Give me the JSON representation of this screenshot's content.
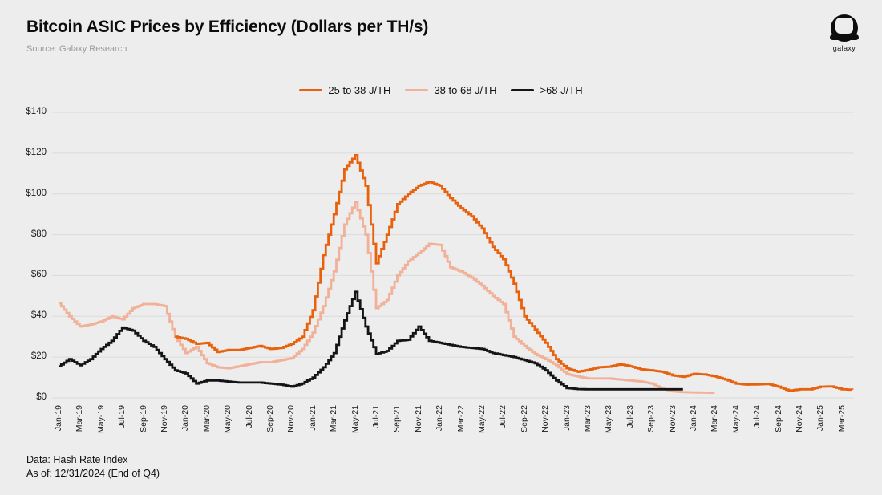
{
  "header": {
    "title": "Bitcoin ASIC Prices by Efficiency (Dollars per TH/s)",
    "source": "Source: Galaxy Research",
    "logo_text": "galaxy"
  },
  "footer": {
    "line1": "Data: Hash Rate Index",
    "line2": "As of: 12/31/2024 (End of Q4)"
  },
  "colors": {
    "background": "#EDEDED",
    "grid": "#DBDBDB",
    "rule": "#2F2F2F",
    "title": "#0D0D0D",
    "muted": "#9B9B9B"
  },
  "chart_data": {
    "type": "line",
    "title": "Bitcoin ASIC Prices by Efficiency (Dollars per TH/s)",
    "xlabel": "",
    "ylabel": "Dollars per TH/s",
    "ylim": [
      0,
      140
    ],
    "grid": "horizontal",
    "legend_position": "top",
    "yticks": [
      "$140",
      "$120",
      "$100",
      "$80",
      "$60",
      "$40",
      "$20",
      "$0"
    ],
    "x_tick_labels": [
      "Jan-19",
      "Mar-19",
      "May-19",
      "Jul-19",
      "Sep-19",
      "Nov-19",
      "Jan-20",
      "Mar-20",
      "May-20",
      "Jul-20",
      "Sep-20",
      "Nov-20",
      "Jan-21",
      "Mar-21",
      "May-21",
      "Jul-21",
      "Sep-21",
      "Nov-21",
      "Jan-22",
      "Mar-22",
      "May-22",
      "Jul-22",
      "Sep-22",
      "Nov-22",
      "Jan-23",
      "Mar-23",
      "May-23",
      "Jul-23",
      "Sep-23",
      "Nov-23",
      "Jan-24",
      "Mar-24",
      "May-24",
      "Jul-24",
      "Sep-24",
      "Nov-24",
      "Jan-25",
      "Mar-25"
    ],
    "x": [
      "2019-01",
      "2019-02",
      "2019-03",
      "2019-04",
      "2019-05",
      "2019-06",
      "2019-07",
      "2019-08",
      "2019-09",
      "2019-10",
      "2019-11",
      "2019-12",
      "2020-01",
      "2020-02",
      "2020-03",
      "2020-04",
      "2020-05",
      "2020-06",
      "2020-07",
      "2020-08",
      "2020-09",
      "2020-10",
      "2020-11",
      "2020-12",
      "2021-01",
      "2021-02",
      "2021-03",
      "2021-04",
      "2021-05",
      "2021-06",
      "2021-07",
      "2021-08",
      "2021-09",
      "2021-10",
      "2021-11",
      "2021-12",
      "2022-01",
      "2022-02",
      "2022-03",
      "2022-04",
      "2022-05",
      "2022-06",
      "2022-07",
      "2022-08",
      "2022-09",
      "2022-10",
      "2022-11",
      "2022-12",
      "2023-01",
      "2023-02",
      "2023-03",
      "2023-04",
      "2023-05",
      "2023-06",
      "2023-07",
      "2023-08",
      "2023-09",
      "2023-10",
      "2023-11",
      "2023-12",
      "2024-01",
      "2024-02",
      "2024-03",
      "2024-04",
      "2024-05",
      "2024-06",
      "2024-07",
      "2024-08",
      "2024-09",
      "2024-10",
      "2024-11",
      "2024-12",
      "2025-01",
      "2025-02",
      "2025-03",
      "2025-04"
    ],
    "series": [
      {
        "name": "25 to 38 J/TH",
        "color": "#E8610D",
        "values": [
          null,
          null,
          null,
          null,
          null,
          null,
          null,
          null,
          null,
          null,
          null,
          30,
          29,
          26.5,
          27,
          22.5,
          23.5,
          23.5,
          24.5,
          25.5,
          24,
          24.5,
          26.5,
          30,
          43,
          70,
          90,
          112,
          119,
          104,
          66,
          80,
          95,
          100,
          104,
          106,
          104,
          98,
          93,
          89,
          83,
          74,
          68,
          56,
          40,
          33.5,
          27,
          19,
          14.5,
          12.8,
          13.7,
          15,
          15.3,
          16.5,
          15.5,
          14,
          13.5,
          12.8,
          11,
          10.3,
          11.8,
          11.5,
          10.5,
          9,
          7,
          6.5,
          6.6,
          6.8,
          5.5,
          3.5,
          4.2,
          4.2,
          5.5,
          5.6,
          4.2,
          4
        ]
      },
      {
        "name": "38 to 68 J/TH",
        "color": "#F1B098",
        "values": [
          46.5,
          40,
          35,
          36,
          37.5,
          40,
          38.5,
          44,
          46,
          46,
          45,
          30,
          22,
          25,
          17,
          15,
          14.5,
          15.5,
          16.5,
          17.5,
          17.5,
          18.5,
          19.5,
          24,
          32,
          45,
          62,
          85,
          96,
          80,
          44,
          48,
          60,
          67,
          71,
          75.5,
          75,
          64,
          62,
          59,
          55,
          50,
          46,
          30,
          25.5,
          21.5,
          19,
          16,
          11.7,
          10.5,
          9.5,
          9.5,
          9.5,
          9,
          8.5,
          8,
          7,
          4.5,
          3.2,
          2.8,
          2.7,
          2.6,
          2.5,
          null,
          null,
          null,
          null,
          null,
          null,
          null,
          null,
          null,
          null,
          null,
          null,
          null
        ]
      },
      {
        "name": ">68 J/TH",
        "color": "#141414",
        "values": [
          15.5,
          19,
          16,
          19,
          24,
          28,
          34.5,
          33,
          28,
          25,
          19,
          13.5,
          12,
          7,
          8.5,
          8.5,
          8,
          7.5,
          7.5,
          7.5,
          7,
          6.5,
          5.5,
          7,
          10,
          15,
          22,
          38,
          52,
          35,
          21.5,
          23,
          28,
          28.5,
          35,
          28,
          27,
          26,
          25,
          24.5,
          24,
          22,
          21,
          20,
          18.5,
          17,
          13.5,
          8.5,
          4.8,
          4.3,
          4.2,
          4.2,
          4.2,
          4.2,
          4.2,
          4.2,
          4.2,
          4.2,
          4.2,
          4.2,
          null,
          null,
          null,
          null,
          null,
          null,
          null,
          null,
          null,
          null,
          null,
          null,
          null,
          null,
          null,
          null
        ]
      }
    ]
  }
}
